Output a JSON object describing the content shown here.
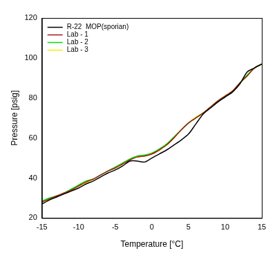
{
  "chart_data": {
    "type": "line",
    "x_label": "Temperature [°C]",
    "y_label": "Pressure [psig]",
    "x": [
      -15,
      -14,
      -13,
      -12,
      -11,
      -10,
      -9,
      -8,
      -7,
      -6,
      -5,
      -4,
      -3,
      -2,
      -1,
      0,
      1,
      2,
      3,
      4,
      5,
      6,
      7,
      8,
      9,
      10,
      11,
      12,
      13,
      14,
      15
    ],
    "series": [
      {
        "name": "R-22  MOP(sporian)",
        "color": "#000000",
        "values": [
          27,
          29,
          30.5,
          32,
          33.5,
          35,
          37,
          38.5,
          40.5,
          42.5,
          44,
          46,
          48.5,
          48.5,
          48,
          50,
          52,
          54,
          56.5,
          59,
          62,
          67,
          72,
          75,
          78,
          80.5,
          83,
          87,
          93,
          95,
          97
        ]
      },
      {
        "name": "Lab - 1",
        "color": "#a01818",
        "values": [
          28,
          29.5,
          31,
          32.5,
          34,
          36,
          38,
          39.5,
          41.5,
          43.5,
          45,
          47,
          49,
          50.5,
          51,
          52,
          54,
          56.5,
          60,
          64,
          67.5,
          70,
          72.5,
          75.5,
          78.5,
          81,
          83.5,
          87.5,
          91,
          95,
          97
        ]
      },
      {
        "name": "Lab - 2",
        "color": "#00dd00",
        "values": [
          28.5,
          30,
          31,
          32.5,
          34.5,
          36.5,
          38.5,
          39.5,
          41.5,
          43.5,
          45.5,
          47.5,
          49.5,
          51,
          51.5,
          52.5,
          54.5,
          57,
          60.5,
          64,
          67.5,
          70,
          72.5,
          75.5,
          78.5,
          81,
          83,
          87.5,
          91.5,
          95,
          97
        ]
      },
      {
        "name": "Lab - 3",
        "color": "#f0f000",
        "values": [
          28,
          29.5,
          31,
          32.5,
          34,
          36,
          37.5,
          39.5,
          41.5,
          43.5,
          45,
          47,
          49.5,
          50.5,
          51,
          52,
          54,
          56.5,
          60,
          64,
          67.5,
          70.5,
          72.5,
          75.5,
          78.5,
          81,
          83.5,
          87.5,
          91,
          95,
          97
        ]
      }
    ],
    "xlim": [
      -15,
      15
    ],
    "xticks": [
      -15,
      -10,
      -5,
      0,
      5,
      10,
      15
    ],
    "ylim": [
      20,
      120
    ],
    "yticks": [
      20,
      40,
      60,
      80,
      100,
      120
    ],
    "grid": false,
    "legend": "upper left"
  }
}
